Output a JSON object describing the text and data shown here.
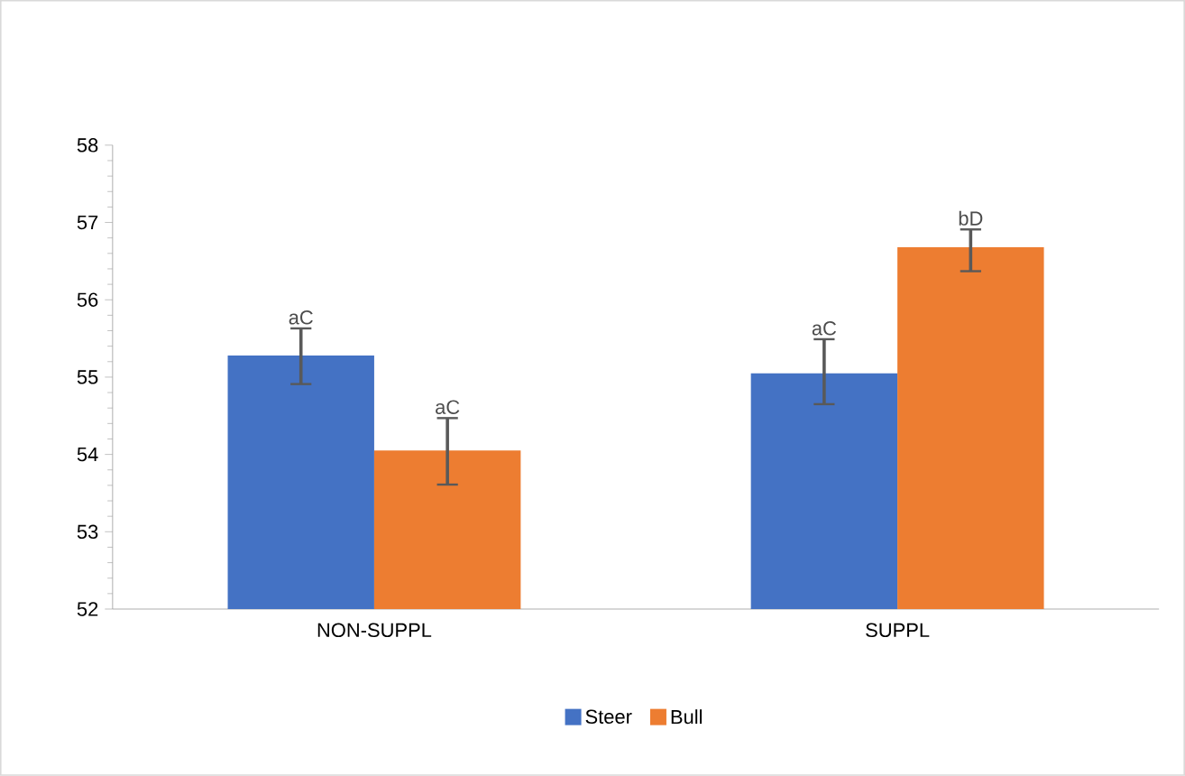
{
  "chart_data": {
    "type": "bar",
    "categories": [
      "NON-SUPPL",
      "SUPPL"
    ],
    "series": [
      {
        "name": "Steer",
        "color": "#4472c4",
        "values": [
          55.28,
          55.05
        ],
        "errors": [
          [
            54.91,
            55.63
          ],
          [
            54.65,
            55.49
          ]
        ]
      },
      {
        "name": "Bull",
        "color": "#ed7d31",
        "values": [
          54.05,
          56.68
        ],
        "errors": [
          [
            53.61,
            54.47
          ],
          [
            56.37,
            56.91
          ]
        ]
      }
    ],
    "ylim": [
      52,
      58
    ],
    "yticks": [
      52,
      53,
      54,
      55,
      56,
      57,
      58
    ],
    "grid": false,
    "legend": "bottom",
    "annotations": [
      "aC",
      "aC",
      "aC",
      "bD"
    ]
  }
}
